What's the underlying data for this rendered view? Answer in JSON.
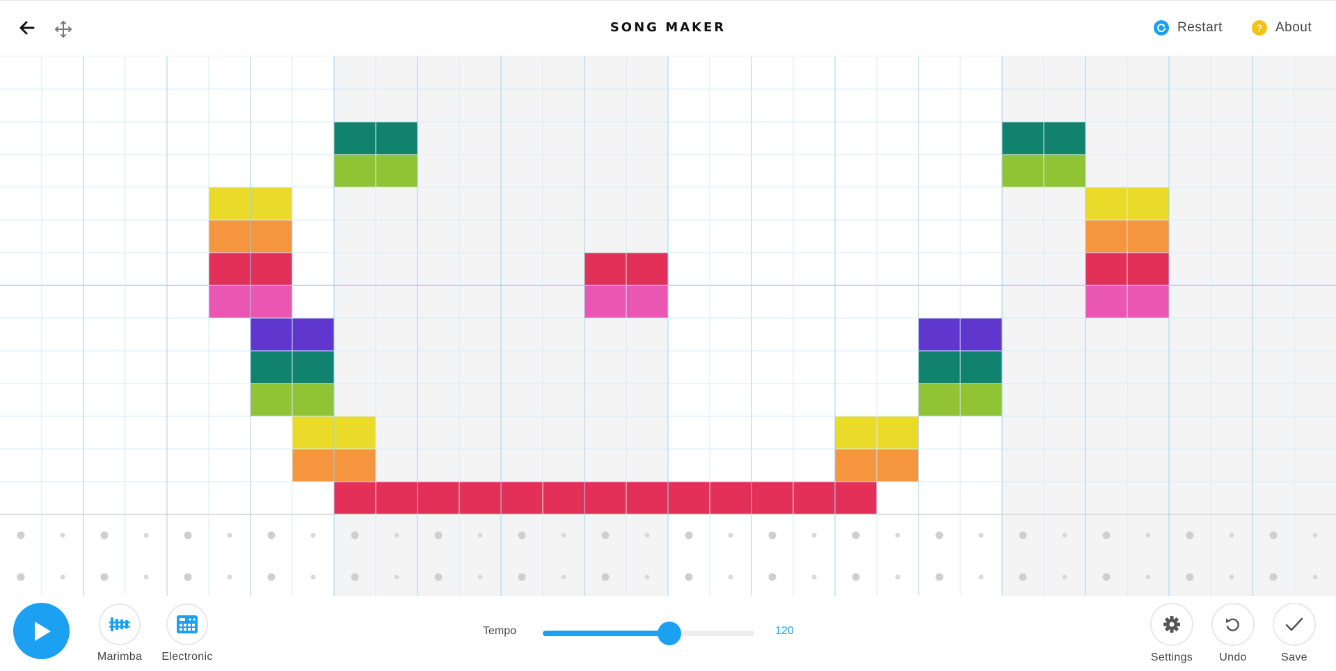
{
  "header": {
    "title": "SONG MAKER",
    "back_icon": "arrow-left-icon",
    "move_icon": "move-arrows-icon",
    "restart_label": "Restart",
    "about_label": "About",
    "about_glyph": "?"
  },
  "colors": {
    "accent": "#1ba0f2",
    "restart_icon": "#1ba0f2",
    "about_icon": "#f5c117",
    "shaded_band": "#f4f4f4",
    "grid_line_light": "#d6ebf9",
    "grid_line_bar": "#9cd0f3",
    "note_palette": {
      "r": "#e33059",
      "o": "#f5963e",
      "y": "#eadb2a",
      "l": "#91c434",
      "t": "#11826d",
      "v": "#5f37cf",
      "p": "#ea57b2"
    }
  },
  "grid": {
    "columns": 32,
    "pitch_rows": 14,
    "percussion_rows": 2,
    "shaded_column_ranges": [
      [
        8,
        15
      ],
      [
        24,
        31
      ]
    ],
    "notes": [
      "................................",
      "................................",
      "........tt..............tt......",
      "........ll..............ll......",
      ".....yy...................yy....",
      ".....oo...................oo....",
      ".....rr.......rr..........rr....",
      ".....pp.......pp..........pp....",
      "......vv..............vv........",
      "......tt..............tt........",
      "......ll..............ll........",
      ".......yy...........yy..........",
      ".......oo...........oo..........",
      "........rrrrrrrrrrrrr..........."
    ]
  },
  "controls": {
    "play_icon": "play-icon",
    "instruments": [
      {
        "label": "Marimba",
        "icon": "marimba-icon"
      },
      {
        "label": "Electronic",
        "icon": "drum-machine-icon"
      }
    ],
    "tempo_label": "Tempo",
    "tempo_value": "120",
    "tempo_fraction": 0.6,
    "tools": [
      {
        "label": "Settings",
        "icon": "gear-icon"
      },
      {
        "label": "Undo",
        "icon": "undo-icon"
      },
      {
        "label": "Save",
        "icon": "check-icon"
      }
    ]
  }
}
